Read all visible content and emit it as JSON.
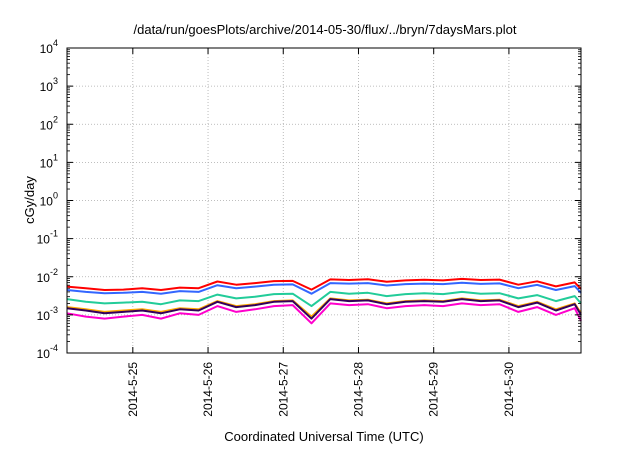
{
  "chart_data": {
    "type": "line",
    "title": "/data/run/goesPlots/archive/2014-05-30/flux/../bryn/7daysMars.plot",
    "xlabel": "Coordinated Universal Time (UTC)",
    "ylabel": "cGy/day",
    "yscale": "log",
    "ylim": [
      0.0001,
      10000
    ],
    "xlim": [
      "2014-05-24T03:00",
      "2014-05-30T23:00"
    ],
    "grid": true,
    "legend": "none",
    "y_ticks": [
      {
        "base": "10",
        "exp": "4"
      },
      {
        "base": "10",
        "exp": "3"
      },
      {
        "base": "10",
        "exp": "2"
      },
      {
        "base": "10",
        "exp": "1"
      },
      {
        "base": "10",
        "exp": "0"
      },
      {
        "base": "10",
        "exp": "-1"
      },
      {
        "base": "10",
        "exp": "-2"
      },
      {
        "base": "10",
        "exp": "-3"
      },
      {
        "base": "10",
        "exp": "-4"
      }
    ],
    "x_ticks": [
      {
        "label": "2014-5-25",
        "t": "2014-05-25T00:00"
      },
      {
        "label": "2014-5-26",
        "t": "2014-05-26T00:00"
      },
      {
        "label": "2014-5-27",
        "t": "2014-05-27T00:00"
      },
      {
        "label": "2014-5-28",
        "t": "2014-05-28T00:00"
      },
      {
        "label": "2014-5-29",
        "t": "2014-05-29T00:00"
      },
      {
        "label": "2014-5-30",
        "t": "2014-05-30T00:00"
      }
    ],
    "x": [
      "2014-05-24T03:00",
      "2014-05-24T09:00",
      "2014-05-24T15:00",
      "2014-05-24T21:00",
      "2014-05-25T03:00",
      "2014-05-25T09:00",
      "2014-05-25T15:00",
      "2014-05-25T21:00",
      "2014-05-26T03:00",
      "2014-05-26T09:00",
      "2014-05-26T15:00",
      "2014-05-26T21:00",
      "2014-05-27T03:00",
      "2014-05-27T09:00",
      "2014-05-27T15:00",
      "2014-05-27T21:00",
      "2014-05-28T03:00",
      "2014-05-28T09:00",
      "2014-05-28T15:00",
      "2014-05-28T21:00",
      "2014-05-29T03:00",
      "2014-05-29T09:00",
      "2014-05-29T15:00",
      "2014-05-29T21:00",
      "2014-05-30T03:00",
      "2014-05-30T09:00",
      "2014-05-30T15:00",
      "2014-05-30T21:00",
      "2014-05-30T23:00"
    ],
    "series": [
      {
        "color": "#ff0000",
        "values": [
          0.0055,
          0.005,
          0.0045,
          0.0046,
          0.005,
          0.0045,
          0.0052,
          0.005,
          0.0075,
          0.0062,
          0.0068,
          0.0077,
          0.0078,
          0.0046,
          0.0085,
          0.0082,
          0.0086,
          0.0074,
          0.008,
          0.0083,
          0.008,
          0.0088,
          0.0082,
          0.0084,
          0.0062,
          0.0076,
          0.0056,
          0.0071,
          0.0048
        ]
      },
      {
        "color": "#3366ff",
        "values": [
          0.0045,
          0.004,
          0.0037,
          0.0038,
          0.004,
          0.0036,
          0.0042,
          0.004,
          0.006,
          0.005,
          0.0055,
          0.0062,
          0.0063,
          0.0036,
          0.0068,
          0.0066,
          0.0068,
          0.0059,
          0.0064,
          0.0066,
          0.0064,
          0.007,
          0.0065,
          0.0067,
          0.005,
          0.0061,
          0.0045,
          0.0057,
          0.0038
        ]
      },
      {
        "color": "#22cc99",
        "values": [
          0.0026,
          0.0022,
          0.002,
          0.0021,
          0.0022,
          0.0019,
          0.0024,
          0.0023,
          0.0034,
          0.0027,
          0.003,
          0.0035,
          0.0036,
          0.0017,
          0.004,
          0.0036,
          0.0038,
          0.0031,
          0.0035,
          0.0037,
          0.0035,
          0.004,
          0.0036,
          0.0037,
          0.0027,
          0.0033,
          0.0023,
          0.0031,
          0.002
        ]
      },
      {
        "color": "#ffaa00",
        "values": [
          0.0016,
          0.0014,
          0.0012,
          0.0013,
          0.0014,
          0.0012,
          0.0015,
          0.0014,
          0.0023,
          0.0017,
          0.0019,
          0.0023,
          0.0024,
          0.0009,
          0.0027,
          0.0024,
          0.0025,
          0.002,
          0.0023,
          0.0024,
          0.0023,
          0.0027,
          0.0024,
          0.0025,
          0.0017,
          0.0022,
          0.0014,
          0.002,
          0.0011
        ]
      },
      {
        "color": "#33005c",
        "values": [
          0.0015,
          0.0013,
          0.0011,
          0.0012,
          0.0013,
          0.0011,
          0.0014,
          0.0013,
          0.0022,
          0.0016,
          0.0018,
          0.0022,
          0.0023,
          0.0008,
          0.0026,
          0.0023,
          0.0024,
          0.0019,
          0.0022,
          0.0023,
          0.0022,
          0.0026,
          0.0023,
          0.0024,
          0.0016,
          0.0021,
          0.0013,
          0.0019,
          0.001
        ]
      },
      {
        "color": "#ff00cc",
        "values": [
          0.0011,
          0.0009,
          0.0008,
          0.0009,
          0.001,
          0.0008,
          0.0011,
          0.001,
          0.0017,
          0.0012,
          0.0014,
          0.0017,
          0.0018,
          0.0006,
          0.002,
          0.0018,
          0.0019,
          0.0015,
          0.0017,
          0.0018,
          0.0017,
          0.002,
          0.0018,
          0.0019,
          0.0012,
          0.0016,
          0.001,
          0.0015,
          0.0007
        ]
      }
    ]
  }
}
